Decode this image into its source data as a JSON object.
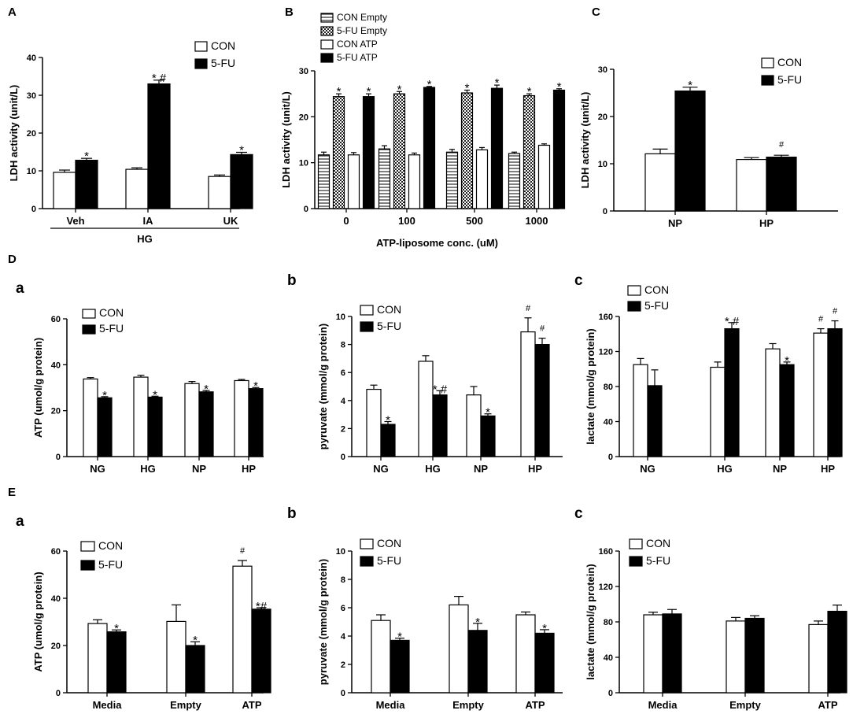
{
  "figure": {
    "colors": {
      "con": "#ffffff",
      "fu": "#000000",
      "stroke": "#000000"
    },
    "panels": [
      {
        "id": "A",
        "label": "A",
        "sub": "",
        "ylabel": "LDH activity (unit/L)",
        "xlabel": "",
        "ylim": [
          0,
          40
        ],
        "yticks": [
          "0",
          "10",
          "20",
          "30",
          "40"
        ],
        "categories": [
          "Veh",
          "IA",
          "UK"
        ],
        "group_label": "HG",
        "legend": [
          {
            "name": "CON",
            "fill": "con"
          },
          {
            "name": "5-FU",
            "fill": "fu"
          }
        ],
        "series": [
          {
            "name": "CON",
            "fill": "con",
            "values": [
              9.6,
              10.4,
              8.5
            ],
            "errors": [
              0.6,
              0.4,
              0.4
            ],
            "marks": [
              "",
              "",
              ""
            ]
          },
          {
            "name": "5-FU",
            "fill": "fu",
            "values": [
              12.8,
              33.0,
              14.3
            ],
            "errors": [
              0.5,
              1.0,
              0.6
            ],
            "marks": [
              "*",
              "* #",
              "*"
            ]
          }
        ]
      },
      {
        "id": "B",
        "label": "B",
        "sub": "",
        "ylabel": "LDH activity (unit/L)",
        "xlabel": "ATP-liposome conc. (uM)",
        "ylim": [
          0,
          30
        ],
        "yticks": [
          "0",
          "10",
          "20",
          "30"
        ],
        "categories": [
          "0",
          "100",
          "500",
          "1000"
        ],
        "group_label": "",
        "legend": [
          {
            "name": "CON Empty",
            "fill": "hstripe"
          },
          {
            "name": "5-FU Empty",
            "fill": "check"
          },
          {
            "name": "CON ATP",
            "fill": "con"
          },
          {
            "name": "5-FU ATP",
            "fill": "fu"
          }
        ],
        "series": [
          {
            "name": "CON Empty",
            "fill": "hstripe",
            "values": [
              11.7,
              13.0,
              12.3,
              12.0
            ],
            "errors": [
              0.6,
              0.7,
              0.6,
              0.3
            ],
            "marks": [
              "",
              "",
              "",
              ""
            ]
          },
          {
            "name": "5-FU Empty",
            "fill": "check",
            "values": [
              24.4,
              25.0,
              25.2,
              24.6
            ],
            "errors": [
              0.6,
              0.5,
              0.6,
              0.4
            ],
            "marks": [
              "*",
              "*",
              "*",
              "*"
            ]
          },
          {
            "name": "CON ATP",
            "fill": "con",
            "values": [
              11.7,
              11.7,
              12.8,
              13.8
            ],
            "errors": [
              0.5,
              0.4,
              0.5,
              0.3
            ],
            "marks": [
              "",
              "",
              "",
              ""
            ]
          },
          {
            "name": "5-FU ATP",
            "fill": "fu",
            "values": [
              24.4,
              26.4,
              26.2,
              25.8
            ],
            "errors": [
              0.6,
              0.2,
              0.7,
              0.3
            ],
            "marks": [
              "*",
              "*",
              "*",
              "*"
            ]
          }
        ]
      },
      {
        "id": "C",
        "label": "C",
        "sub": "",
        "ylabel": "LDH activity (unit/L)",
        "xlabel": "",
        "ylim": [
          0,
          30
        ],
        "yticks": [
          "0",
          "10",
          "20",
          "30"
        ],
        "categories": [
          "NP",
          "HP"
        ],
        "group_label": "",
        "legend": [
          {
            "name": "CON",
            "fill": "con"
          },
          {
            "name": "5-FU",
            "fill": "fu"
          }
        ],
        "series": [
          {
            "name": "CON",
            "fill": "con",
            "values": [
              12.1,
              10.9
            ],
            "errors": [
              1.0,
              0.4
            ],
            "marks": [
              "",
              ""
            ]
          },
          {
            "name": "5-FU",
            "fill": "fu",
            "values": [
              25.4,
              11.4
            ],
            "errors": [
              0.8,
              0.4
            ],
            "marks": [
              "*",
              "#"
            ]
          }
        ]
      },
      {
        "id": "Da",
        "label": "D",
        "sub": "a",
        "ylabel": "ATP (umol/g protein)",
        "xlabel": "",
        "ylim": [
          0,
          60
        ],
        "yticks": [
          "0",
          "20",
          "40",
          "60"
        ],
        "categories": [
          "NG",
          "HG",
          "NP",
          "HP"
        ],
        "group_label": "",
        "legend": [
          {
            "name": "CON",
            "fill": "con"
          },
          {
            "name": "5-FU",
            "fill": "fu"
          }
        ],
        "series": [
          {
            "name": "CON",
            "fill": "con",
            "values": [
              33.8,
              34.6,
              31.8,
              33.1
            ],
            "errors": [
              0.6,
              0.8,
              0.9,
              0.5
            ],
            "marks": [
              "",
              "",
              "",
              ""
            ]
          },
          {
            "name": "5-FU",
            "fill": "fu",
            "values": [
              25.6,
              25.9,
              28.2,
              29.6
            ],
            "errors": [
              0.5,
              0.4,
              0.6,
              0.5
            ],
            "marks": [
              "*",
              "*",
              "*",
              "*"
            ]
          }
        ]
      },
      {
        "id": "Db",
        "label": "",
        "sub": "b",
        "ylabel": "pyruvate (mmol/g protein)",
        "xlabel": "",
        "ylim": [
          0,
          10
        ],
        "yticks": [
          "0",
          "2",
          "4",
          "6",
          "8",
          "10"
        ],
        "categories": [
          "NG",
          "HG",
          "NP",
          "HP"
        ],
        "group_label": "",
        "legend": [
          {
            "name": "CON",
            "fill": "con"
          },
          {
            "name": "5-FU",
            "fill": "fu"
          }
        ],
        "series": [
          {
            "name": "CON",
            "fill": "con",
            "values": [
              4.8,
              6.8,
              4.4,
              8.9
            ],
            "errors": [
              0.3,
              0.4,
              0.6,
              1.0
            ],
            "marks": [
              "",
              "",
              "",
              "#"
            ]
          },
          {
            "name": "5-FU",
            "fill": "fu",
            "values": [
              2.3,
              4.4,
              2.9,
              8.0
            ],
            "errors": [
              0.2,
              0.3,
              0.15,
              0.45
            ],
            "marks": [
              "*",
              "* #",
              "*",
              "#"
            ]
          }
        ]
      },
      {
        "id": "Dc",
        "label": "",
        "sub": "c",
        "ylabel": "lactate (mmol/g protein)",
        "xlabel": "",
        "ylim": [
          0,
          160
        ],
        "yticks": [
          "0",
          "40",
          "80",
          "120",
          "160"
        ],
        "categories": [
          "NG",
          "HG",
          "NP",
          "HP"
        ],
        "group_label": "",
        "legend": [
          {
            "name": "CON",
            "fill": "con"
          },
          {
            "name": "5-FU",
            "fill": "fu"
          }
        ],
        "series": [
          {
            "name": "CON",
            "fill": "con",
            "values": [
              105,
              102,
              123,
              141
            ],
            "errors": [
              7,
              6,
              6,
              5
            ],
            "marks": [
              "",
              "",
              "",
              "#"
            ]
          },
          {
            "name": "5-FU",
            "fill": "fu",
            "values": [
              81,
              146,
              105,
              146
            ],
            "errors": [
              18,
              7,
              3,
              9
            ],
            "marks": [
              "",
              "* #",
              "*",
              "#"
            ]
          }
        ]
      },
      {
        "id": "Ea",
        "label": "E",
        "sub": "a",
        "ylabel": "ATP (umol/g protein)",
        "xlabel": "",
        "ylim": [
          0,
          60
        ],
        "yticks": [
          "0",
          "20",
          "40",
          "60"
        ],
        "categories": [
          "Media",
          "Empty",
          "ATP"
        ],
        "group_label": "",
        "legend": [
          {
            "name": "CON",
            "fill": "con"
          },
          {
            "name": "5-FU",
            "fill": "fu"
          }
        ],
        "series": [
          {
            "name": "CON",
            "fill": "con",
            "values": [
              29.3,
              30.2,
              53.6
            ],
            "errors": [
              1.6,
              7.0,
              2.4
            ],
            "marks": [
              "",
              "",
              "#"
            ]
          },
          {
            "name": "5-FU",
            "fill": "fu",
            "values": [
              25.8,
              20.0,
              35.4
            ],
            "errors": [
              0.8,
              1.6,
              0.6
            ],
            "marks": [
              "*",
              "*",
              "*#"
            ]
          }
        ]
      },
      {
        "id": "Eb",
        "label": "",
        "sub": "b",
        "ylabel": "pyruvate (mmol/g protein)",
        "xlabel": "",
        "ylim": [
          0,
          10
        ],
        "yticks": [
          "0",
          "2",
          "4",
          "6",
          "8",
          "10"
        ],
        "categories": [
          "Media",
          "Empty",
          "ATP"
        ],
        "group_label": "",
        "legend": [
          {
            "name": "CON",
            "fill": "con"
          },
          {
            "name": "5-FU",
            "fill": "fu"
          }
        ],
        "series": [
          {
            "name": "CON",
            "fill": "con",
            "values": [
              5.1,
              6.2,
              5.5
            ],
            "errors": [
              0.4,
              0.6,
              0.2
            ],
            "marks": [
              "",
              "",
              ""
            ]
          },
          {
            "name": "5-FU",
            "fill": "fu",
            "values": [
              3.7,
              4.4,
              4.2
            ],
            "errors": [
              0.15,
              0.5,
              0.25
            ],
            "marks": [
              "*",
              "*",
              "*"
            ]
          }
        ]
      },
      {
        "id": "Ec",
        "label": "",
        "sub": "c",
        "ylabel": "lactate (mmol/g protein)",
        "xlabel": "",
        "ylim": [
          0,
          160
        ],
        "yticks": [
          "0",
          "40",
          "80",
          "120",
          "160"
        ],
        "categories": [
          "Media",
          "Empty",
          "ATP"
        ],
        "group_label": "",
        "legend": [
          {
            "name": "CON",
            "fill": "con"
          },
          {
            "name": "5-FU",
            "fill": "fu"
          }
        ],
        "series": [
          {
            "name": "CON",
            "fill": "con",
            "values": [
              88,
              81,
              77
            ],
            "errors": [
              3,
              4,
              4
            ],
            "marks": [
              "",
              "",
              ""
            ]
          },
          {
            "name": "5-FU",
            "fill": "fu",
            "values": [
              89,
              84,
              92
            ],
            "errors": [
              5,
              3,
              7
            ],
            "marks": [
              "",
              "",
              ""
            ]
          }
        ]
      }
    ]
  },
  "chart_data": [
    {
      "type": "bar",
      "title": "A",
      "ylabel": "LDH activity (unit/L)",
      "xlabel": "HG",
      "ylim": [
        0,
        40
      ],
      "categories": [
        "Veh",
        "IA",
        "UK"
      ],
      "series": [
        {
          "name": "CON",
          "values": [
            9.6,
            10.4,
            8.5
          ]
        },
        {
          "name": "5-FU",
          "values": [
            12.8,
            33.0,
            14.3
          ]
        }
      ]
    },
    {
      "type": "bar",
      "title": "B",
      "ylabel": "LDH activity (unit/L)",
      "xlabel": "ATP-liposome conc. (uM)",
      "ylim": [
        0,
        30
      ],
      "categories": [
        "0",
        "100",
        "500",
        "1000"
      ],
      "series": [
        {
          "name": "CON Empty",
          "values": [
            11.7,
            13.0,
            12.3,
            12.0
          ]
        },
        {
          "name": "5-FU Empty",
          "values": [
            24.4,
            25.0,
            25.2,
            24.6
          ]
        },
        {
          "name": "CON ATP",
          "values": [
            11.7,
            11.7,
            12.8,
            13.8
          ]
        },
        {
          "name": "5-FU ATP",
          "values": [
            24.4,
            26.4,
            26.2,
            25.8
          ]
        }
      ]
    },
    {
      "type": "bar",
      "title": "C",
      "ylabel": "LDH activity (unit/L)",
      "ylim": [
        0,
        30
      ],
      "categories": [
        "NP",
        "HP"
      ],
      "series": [
        {
          "name": "CON",
          "values": [
            12.1,
            10.9
          ]
        },
        {
          "name": "5-FU",
          "values": [
            25.4,
            11.4
          ]
        }
      ]
    },
    {
      "type": "bar",
      "title": "D a",
      "ylabel": "ATP (umol/g protein)",
      "ylim": [
        0,
        60
      ],
      "categories": [
        "NG",
        "HG",
        "NP",
        "HP"
      ],
      "series": [
        {
          "name": "CON",
          "values": [
            33.8,
            34.6,
            31.8,
            33.1
          ]
        },
        {
          "name": "5-FU",
          "values": [
            25.6,
            25.9,
            28.2,
            29.6
          ]
        }
      ]
    },
    {
      "type": "bar",
      "title": "D b",
      "ylabel": "pyruvate (mmol/g protein)",
      "ylim": [
        0,
        10
      ],
      "categories": [
        "NG",
        "HG",
        "NP",
        "HP"
      ],
      "series": [
        {
          "name": "CON",
          "values": [
            4.8,
            6.8,
            4.4,
            8.9
          ]
        },
        {
          "name": "5-FU",
          "values": [
            2.3,
            4.4,
            2.9,
            8.0
          ]
        }
      ]
    },
    {
      "type": "bar",
      "title": "D c",
      "ylabel": "lactate (mmol/g protein)",
      "ylim": [
        0,
        160
      ],
      "categories": [
        "NG",
        "HG",
        "NP",
        "HP"
      ],
      "series": [
        {
          "name": "CON",
          "values": [
            105,
            102,
            123,
            141
          ]
        },
        {
          "name": "5-FU",
          "values": [
            81,
            146,
            105,
            146
          ]
        }
      ]
    },
    {
      "type": "bar",
      "title": "E a",
      "ylabel": "ATP (umol/g protein)",
      "ylim": [
        0,
        60
      ],
      "categories": [
        "Media",
        "Empty",
        "ATP"
      ],
      "series": [
        {
          "name": "CON",
          "values": [
            29.3,
            30.2,
            53.6
          ]
        },
        {
          "name": "5-FU",
          "values": [
            25.8,
            20.0,
            35.4
          ]
        }
      ]
    },
    {
      "type": "bar",
      "title": "E b",
      "ylabel": "pyruvate (mmol/g protein)",
      "ylim": [
        0,
        10
      ],
      "categories": [
        "Media",
        "Empty",
        "ATP"
      ],
      "series": [
        {
          "name": "CON",
          "values": [
            5.1,
            6.2,
            5.5
          ]
        },
        {
          "name": "5-FU",
          "values": [
            3.7,
            4.4,
            4.2
          ]
        }
      ]
    },
    {
      "type": "bar",
      "title": "E c",
      "ylabel": "lactate (mmol/g protein)",
      "ylim": [
        0,
        160
      ],
      "categories": [
        "Media",
        "Empty",
        "ATP"
      ],
      "series": [
        {
          "name": "CON",
          "values": [
            88,
            81,
            77
          ]
        },
        {
          "name": "5-FU",
          "values": [
            89,
            84,
            92
          ]
        }
      ]
    }
  ]
}
